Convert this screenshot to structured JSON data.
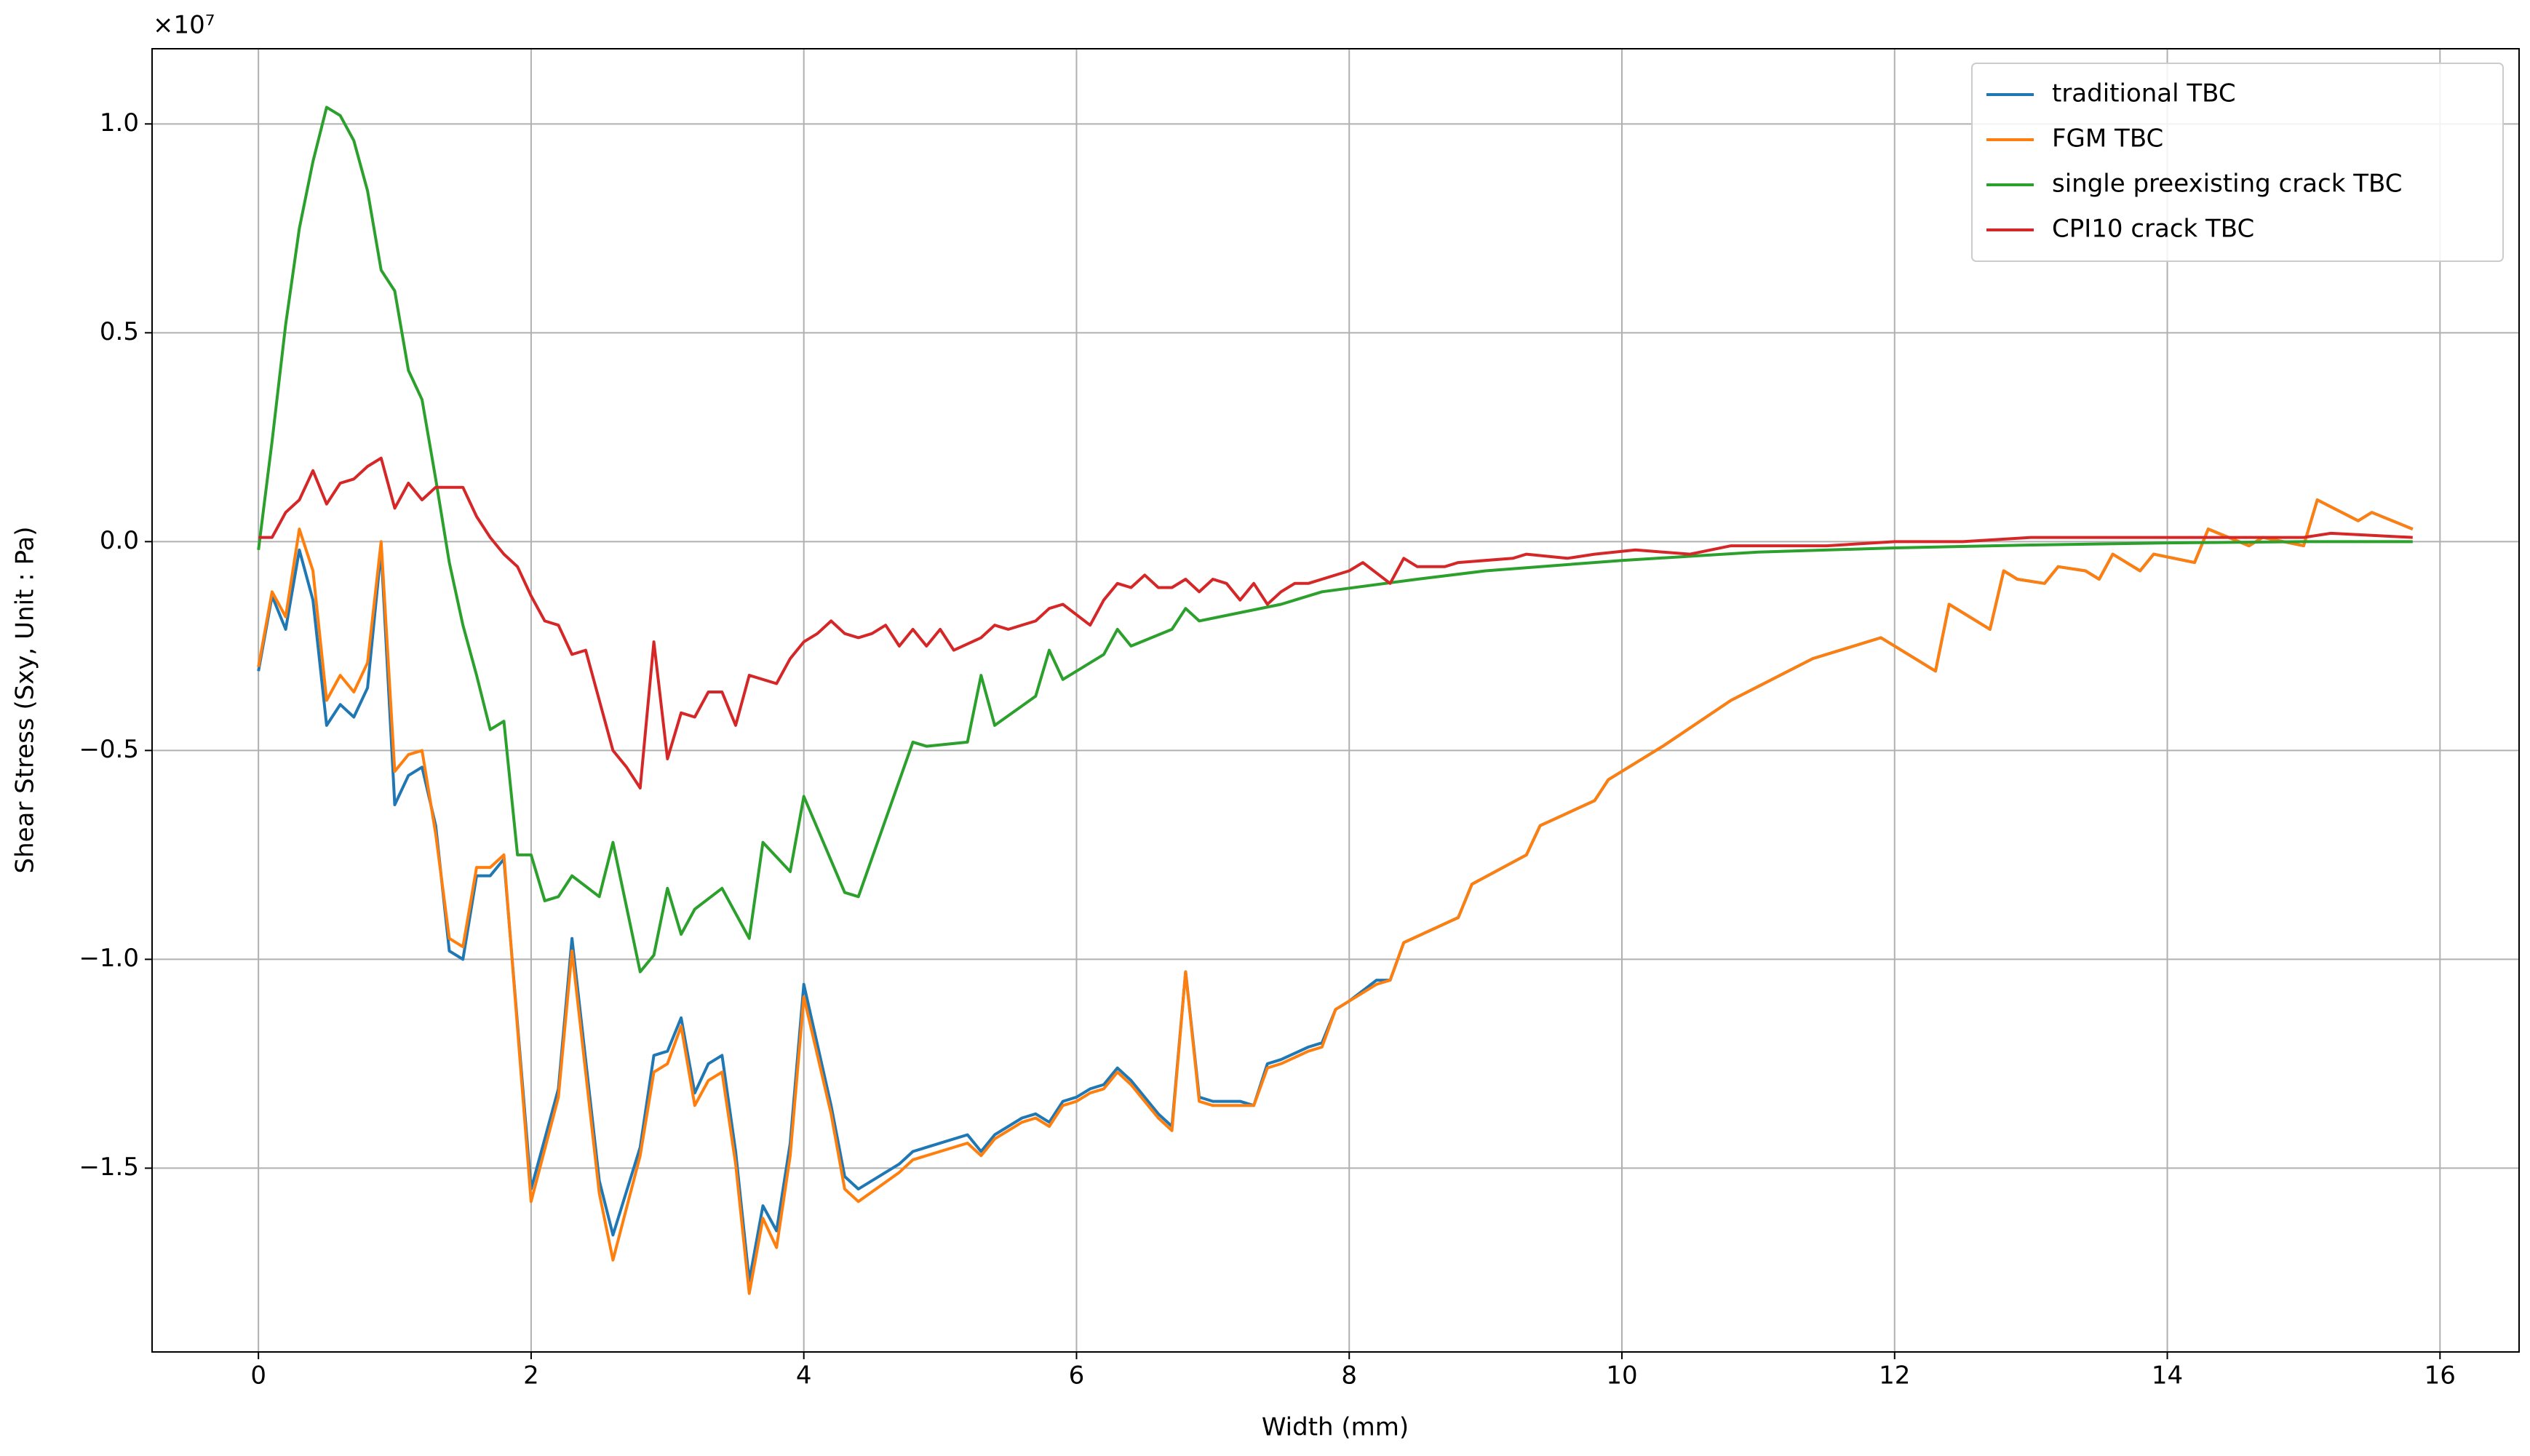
{
  "chart_data": {
    "type": "line",
    "x_label": "Width (mm)",
    "y_label": "Shear Stress (Sxy, Unit : Pa)",
    "y_offset_label": "×10⁷",
    "xlim": [
      -0.78,
      16.58
    ],
    "ylim": [
      -1.94,
      1.18
    ],
    "xticks": [
      0,
      2,
      4,
      6,
      8,
      10,
      12,
      14,
      16
    ],
    "yticks": [
      {
        "value": -1.5,
        "label": "−1.5"
      },
      {
        "value": -1,
        "label": "−1.0"
      },
      {
        "value": -0.5,
        "label": "−0.5"
      },
      {
        "value": 0,
        "label": "0.0"
      },
      {
        "value": 0.5,
        "label": "0.5"
      },
      {
        "value": 1,
        "label": "1.0"
      }
    ],
    "grid": true,
    "legend": "upper right",
    "series": [
      {
        "name": "traditional TBC",
        "color": "#1f77b4",
        "x": [
          0,
          0.1,
          0.2,
          0.3,
          0.4,
          0.5,
          0.6,
          0.7,
          0.8,
          0.9,
          1.0,
          1.1,
          1.2,
          1.3,
          1.4,
          1.5,
          1.6,
          1.7,
          1.8,
          2.0,
          2.2,
          2.3,
          2.5,
          2.6,
          2.8,
          2.9,
          3.0,
          3.1,
          3.2,
          3.3,
          3.4,
          3.5,
          3.6,
          3.7,
          3.8,
          3.9,
          4.0,
          4.2,
          4.3,
          4.4,
          4.7,
          4.8,
          5.2,
          5.3,
          5.4,
          5.6,
          5.7,
          5.8,
          5.9,
          6.0,
          6.1,
          6.2,
          6.3,
          6.4,
          6.6,
          6.7,
          6.8,
          6.9,
          7.0,
          7.2,
          7.3,
          7.4,
          7.5,
          7.7,
          7.8,
          7.9,
          8.0,
          8.2,
          8.3,
          8.4,
          8.8,
          8.9,
          9.3,
          9.4,
          9.8,
          9.9,
          10.3,
          10.8,
          11.4,
          11.9,
          12.3,
          12.4,
          12.7,
          12.8,
          12.9,
          13.1,
          13.2,
          13.4,
          13.5,
          13.6,
          13.8,
          13.9,
          14.2,
          14.3,
          14.6,
          14.7,
          15.0,
          15.1,
          15.4,
          15.5,
          15.8
        ],
        "values": [
          -0.31,
          -0.13,
          -0.21,
          -0.02,
          -0.14,
          -0.44,
          -0.39,
          -0.42,
          -0.35,
          -0.02,
          -0.63,
          -0.56,
          -0.54,
          -0.68,
          -0.98,
          -1.0,
          -0.8,
          -0.8,
          -0.76,
          -1.55,
          -1.31,
          -0.95,
          -1.53,
          -1.66,
          -1.45,
          -1.23,
          -1.22,
          -1.14,
          -1.32,
          -1.25,
          -1.23,
          -1.46,
          -1.77,
          -1.59,
          -1.65,
          -1.44,
          -1.06,
          -1.35,
          -1.52,
          -1.55,
          -1.49,
          -1.46,
          -1.42,
          -1.46,
          -1.42,
          -1.38,
          -1.37,
          -1.39,
          -1.34,
          -1.33,
          -1.31,
          -1.3,
          -1.26,
          -1.29,
          -1.37,
          -1.4,
          -1.03,
          -1.33,
          -1.34,
          -1.34,
          -1.35,
          -1.25,
          -1.24,
          -1.21,
          -1.2,
          -1.12,
          -1.1,
          -1.05,
          -1.05,
          -0.96,
          -0.9,
          -0.82,
          -0.75,
          -0.68,
          -0.62,
          -0.57,
          -0.49,
          -0.38,
          -0.28,
          -0.23,
          -0.31,
          -0.15,
          -0.21,
          -0.07,
          -0.09,
          -0.1,
          -0.06,
          -0.07,
          -0.09,
          -0.03,
          -0.07,
          -0.03,
          -0.05,
          0.03,
          -0.01,
          0.01,
          -0.01,
          0.1,
          0.05,
          0.07,
          0.03
        ]
      },
      {
        "name": "FGM TBC",
        "color": "#ff7f0e",
        "x": [
          0,
          0.1,
          0.2,
          0.3,
          0.4,
          0.5,
          0.6,
          0.7,
          0.8,
          0.9,
          1.0,
          1.1,
          1.2,
          1.3,
          1.4,
          1.5,
          1.6,
          1.7,
          1.8,
          2.0,
          2.2,
          2.3,
          2.5,
          2.6,
          2.8,
          2.9,
          3.0,
          3.1,
          3.2,
          3.3,
          3.4,
          3.5,
          3.6,
          3.7,
          3.8,
          3.9,
          4.0,
          4.2,
          4.3,
          4.4,
          4.7,
          4.8,
          5.2,
          5.3,
          5.4,
          5.6,
          5.7,
          5.8,
          5.9,
          6.0,
          6.1,
          6.2,
          6.3,
          6.4,
          6.6,
          6.7,
          6.8,
          6.9,
          7.0,
          7.2,
          7.3,
          7.4,
          7.5,
          7.7,
          7.8,
          7.9,
          8.0,
          8.2,
          8.3,
          8.4,
          8.8,
          8.9,
          9.3,
          9.4,
          9.8,
          9.9,
          10.3,
          10.8,
          11.4,
          11.9,
          12.3,
          12.4,
          12.7,
          12.8,
          12.9,
          13.1,
          13.2,
          13.4,
          13.5,
          13.6,
          13.8,
          13.9,
          14.2,
          14.3,
          14.6,
          14.7,
          15.0,
          15.1,
          15.4,
          15.5,
          15.8
        ],
        "values": [
          -0.3,
          -0.12,
          -0.18,
          0.03,
          -0.07,
          -0.38,
          -0.32,
          -0.36,
          -0.29,
          0.0,
          -0.55,
          -0.51,
          -0.5,
          -0.7,
          -0.95,
          -0.97,
          -0.78,
          -0.78,
          -0.75,
          -1.58,
          -1.33,
          -0.98,
          -1.56,
          -1.72,
          -1.47,
          -1.27,
          -1.25,
          -1.16,
          -1.35,
          -1.29,
          -1.27,
          -1.49,
          -1.8,
          -1.62,
          -1.69,
          -1.47,
          -1.09,
          -1.37,
          -1.55,
          -1.58,
          -1.51,
          -1.48,
          -1.44,
          -1.47,
          -1.43,
          -1.39,
          -1.38,
          -1.4,
          -1.35,
          -1.34,
          -1.32,
          -1.31,
          -1.27,
          -1.3,
          -1.38,
          -1.41,
          -1.03,
          -1.34,
          -1.35,
          -1.35,
          -1.35,
          -1.26,
          -1.25,
          -1.22,
          -1.21,
          -1.12,
          -1.1,
          -1.06,
          -1.05,
          -0.96,
          -0.9,
          -0.82,
          -0.75,
          -0.68,
          -0.62,
          -0.57,
          -0.49,
          -0.38,
          -0.28,
          -0.23,
          -0.31,
          -0.15,
          -0.21,
          -0.07,
          -0.09,
          -0.1,
          -0.06,
          -0.07,
          -0.09,
          -0.03,
          -0.07,
          -0.03,
          -0.05,
          0.03,
          -0.01,
          0.01,
          -0.01,
          0.1,
          0.05,
          0.07,
          0.03
        ]
      },
      {
        "name": "single preexisting crack TBC",
        "color": "#2ca02c",
        "x": [
          0,
          0.1,
          0.2,
          0.3,
          0.4,
          0.5,
          0.6,
          0.7,
          0.8,
          0.9,
          1.0,
          1.1,
          1.2,
          1.3,
          1.4,
          1.5,
          1.6,
          1.7,
          1.8,
          1.9,
          2.0,
          2.1,
          2.2,
          2.3,
          2.5,
          2.6,
          2.8,
          2.9,
          3.0,
          3.1,
          3.2,
          3.4,
          3.6,
          3.7,
          3.9,
          4.0,
          4.3,
          4.4,
          4.8,
          4.9,
          5.2,
          5.3,
          5.4,
          5.7,
          5.8,
          5.9,
          6.2,
          6.3,
          6.4,
          6.7,
          6.8,
          6.9,
          7.5,
          7.8,
          8.5,
          9.0,
          10.0,
          11.0,
          12.0,
          13.0,
          14.0,
          15.0,
          15.8
        ],
        "values": [
          -0.02,
          0.24,
          0.52,
          0.75,
          0.91,
          1.04,
          1.02,
          0.96,
          0.84,
          0.65,
          0.6,
          0.41,
          0.34,
          0.15,
          -0.05,
          -0.2,
          -0.32,
          -0.45,
          -0.43,
          -0.75,
          -0.75,
          -0.86,
          -0.85,
          -0.8,
          -0.85,
          -0.72,
          -1.03,
          -0.99,
          -0.83,
          -0.94,
          -0.88,
          -0.83,
          -0.95,
          -0.72,
          -0.79,
          -0.61,
          -0.84,
          -0.85,
          -0.48,
          -0.49,
          -0.48,
          -0.32,
          -0.44,
          -0.37,
          -0.26,
          -0.33,
          -0.27,
          -0.21,
          -0.25,
          -0.21,
          -0.16,
          -0.19,
          -0.15,
          -0.12,
          -0.09,
          -0.07,
          -0.045,
          -0.025,
          -0.015,
          -0.008,
          -0.003,
          0.0,
          0.0
        ]
      },
      {
        "name": "CPI10 crack TBC",
        "color": "#d62728",
        "x": [
          0,
          0.1,
          0.2,
          0.3,
          0.4,
          0.5,
          0.6,
          0.7,
          0.8,
          0.9,
          1.0,
          1.1,
          1.2,
          1.3,
          1.4,
          1.5,
          1.6,
          1.7,
          1.8,
          1.9,
          2.0,
          2.1,
          2.2,
          2.3,
          2.4,
          2.6,
          2.7,
          2.8,
          2.9,
          3.0,
          3.1,
          3.2,
          3.3,
          3.4,
          3.5,
          3.6,
          3.8,
          3.9,
          4.0,
          4.1,
          4.2,
          4.3,
          4.4,
          4.5,
          4.6,
          4.7,
          4.8,
          4.9,
          5.0,
          5.1,
          5.3,
          5.4,
          5.5,
          5.7,
          5.8,
          5.9,
          6.1,
          6.2,
          6.3,
          6.4,
          6.5,
          6.6,
          6.7,
          6.8,
          6.9,
          7.0,
          7.1,
          7.2,
          7.3,
          7.4,
          7.5,
          7.6,
          7.7,
          8.0,
          8.1,
          8.3,
          8.4,
          8.5,
          8.7,
          8.8,
          9.2,
          9.3,
          9.6,
          9.8,
          10.1,
          10.5,
          10.8,
          11.5,
          12.0,
          12.5,
          13.0,
          14.0,
          14.5,
          15.0,
          15.2,
          15.8
        ],
        "values": [
          0.01,
          0.01,
          0.07,
          0.1,
          0.17,
          0.09,
          0.14,
          0.15,
          0.18,
          0.2,
          0.08,
          0.14,
          0.1,
          0.13,
          0.13,
          0.13,
          0.06,
          0.01,
          -0.03,
          -0.06,
          -0.13,
          -0.19,
          -0.2,
          -0.27,
          -0.26,
          -0.5,
          -0.54,
          -0.59,
          -0.24,
          -0.52,
          -0.41,
          -0.42,
          -0.36,
          -0.36,
          -0.44,
          -0.32,
          -0.34,
          -0.28,
          -0.24,
          -0.22,
          -0.19,
          -0.22,
          -0.23,
          -0.22,
          -0.2,
          -0.25,
          -0.21,
          -0.25,
          -0.21,
          -0.26,
          -0.23,
          -0.2,
          -0.21,
          -0.19,
          -0.16,
          -0.15,
          -0.2,
          -0.14,
          -0.1,
          -0.11,
          -0.08,
          -0.11,
          -0.11,
          -0.09,
          -0.12,
          -0.09,
          -0.1,
          -0.14,
          -0.1,
          -0.15,
          -0.12,
          -0.1,
          -0.1,
          -0.07,
          -0.05,
          -0.1,
          -0.04,
          -0.06,
          -0.06,
          -0.05,
          -0.04,
          -0.03,
          -0.04,
          -0.03,
          -0.02,
          -0.03,
          -0.01,
          -0.01,
          0.0,
          0.0,
          0.01,
          0.01,
          0.01,
          0.01,
          0.02,
          0.01
        ]
      }
    ]
  }
}
